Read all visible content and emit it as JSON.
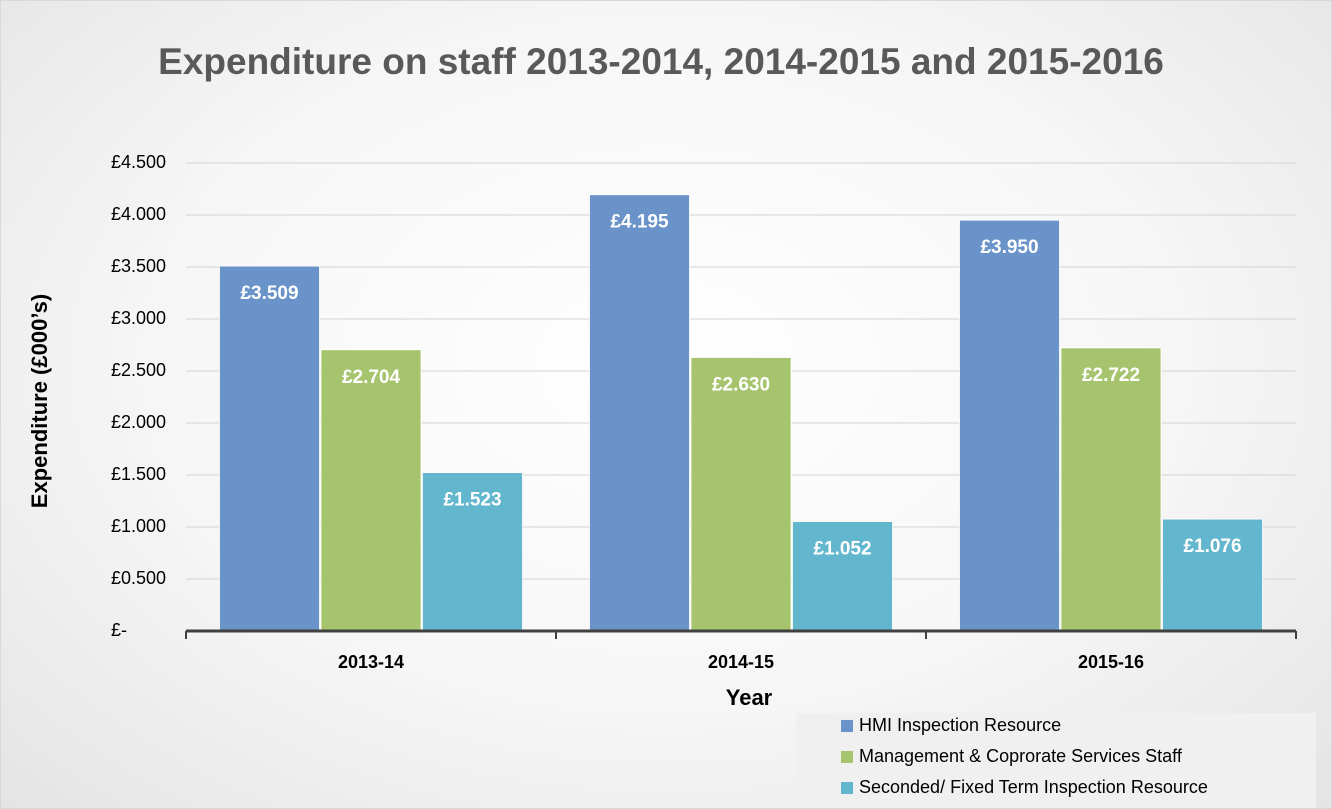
{
  "chart_data": {
    "type": "bar",
    "title": "Expenditure on staff 2013-2014, 2014-2015 and 2015-2016",
    "x_label": "Year",
    "y_label": "Expenditure  (£000’s)",
    "categories": [
      "2013-14",
      "2014-15",
      "2015-16"
    ],
    "series": [
      {
        "name": "HMI Inspection Resource",
        "color": "#6a93c9",
        "values": [
          3.509,
          4.195,
          3.95
        ],
        "value_labels": [
          "£3.509",
          "£4.195",
          "£3.950"
        ]
      },
      {
        "name": "Management & Coprorate Services Staff",
        "color": "#a6c46e",
        "values": [
          2.704,
          2.63,
          2.722
        ],
        "value_labels": [
          "£2.704",
          "£2.630",
          "£2.722"
        ]
      },
      {
        "name": "Seconded/ Fixed Term Inspection Resource",
        "color": "#62b6cd",
        "values": [
          1.523,
          1.052,
          1.076
        ],
        "value_labels": [
          "£1.523",
          "£1.052",
          "£1.076"
        ]
      }
    ],
    "ylim": [
      0,
      4.5
    ],
    "yticks": [
      {
        "value": 0,
        "label": "£-"
      },
      {
        "value": 0.5,
        "label": "£0.500"
      },
      {
        "value": 1,
        "label": "£1.000"
      },
      {
        "value": 1.5,
        "label": "£1.500"
      },
      {
        "value": 2,
        "label": "£2.000"
      },
      {
        "value": 2.5,
        "label": "£2.500"
      },
      {
        "value": 3,
        "label": "£3.000"
      },
      {
        "value": 3.5,
        "label": "£3.500"
      },
      {
        "value": 4,
        "label": "£4.000"
      },
      {
        "value": 4.5,
        "label": "£4.500"
      }
    ],
    "grid": true,
    "legend": "bottom-right"
  }
}
